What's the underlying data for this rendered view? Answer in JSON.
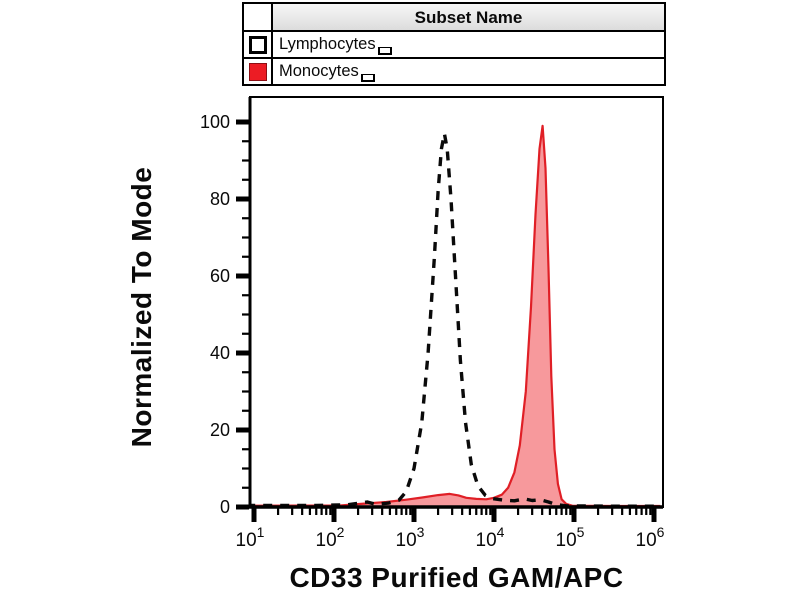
{
  "legend": {
    "header": "Subset Name",
    "rows": [
      {
        "label": "Lymphocytes",
        "swatch_fill": "#ffffff",
        "swatch_border": "#000000",
        "line_style": "dashed"
      },
      {
        "label": "Monocytes",
        "swatch_fill": "#ec1c24",
        "swatch_border": "#8e0e14",
        "line_style": "solid-filled"
      }
    ]
  },
  "chart_data": {
    "type": "area",
    "subtype": "flow-cytometry-histogram-overlay",
    "title": "",
    "xlabel": "CD33 Purified GAM/APC",
    "ylabel": "Normalized To Mode",
    "x_scale": "log10",
    "x_log_range": [
      0.95,
      6.11
    ],
    "ylim": [
      0,
      106.5
    ],
    "grid": false,
    "legend_position": "top-table",
    "xticks": [
      {
        "base": "10",
        "exp": "1",
        "value": 10
      },
      {
        "base": "10",
        "exp": "2",
        "value": 100
      },
      {
        "base": "10",
        "exp": "3",
        "value": 1000
      },
      {
        "base": "10",
        "exp": "4",
        "value": 10000
      },
      {
        "base": "10",
        "exp": "5",
        "value": 100000
      },
      {
        "base": "10",
        "exp": "6",
        "value": 1000000
      }
    ],
    "yticks": [
      0,
      20,
      40,
      60,
      80,
      100
    ],
    "y_minor_step": 5,
    "colors": {
      "axis": "#000000",
      "lymphocytes_stroke": "#0a0a0a",
      "monocytes_stroke": "#e01f26",
      "monocytes_fill": "rgba(237,28,36,0.45)"
    },
    "series": [
      {
        "name": "Lymphocytes",
        "style": "dashed",
        "peak_x": 2400,
        "peak_y": 97,
        "points": [
          [
            8,
            0.4
          ],
          [
            60,
            0.4
          ],
          [
            150,
            0.6
          ],
          [
            260,
            1.3
          ],
          [
            330,
            0.7
          ],
          [
            480,
            1.0
          ],
          [
            650,
            1.8
          ],
          [
            800,
            4
          ],
          [
            1000,
            10
          ],
          [
            1250,
            22
          ],
          [
            1500,
            40
          ],
          [
            1800,
            65
          ],
          [
            2000,
            82
          ],
          [
            2200,
            93
          ],
          [
            2400,
            97
          ],
          [
            2600,
            93
          ],
          [
            2900,
            80
          ],
          [
            3300,
            60
          ],
          [
            3800,
            38
          ],
          [
            4400,
            22
          ],
          [
            5200,
            11
          ],
          [
            6300,
            5.5
          ],
          [
            7800,
            3
          ],
          [
            9500,
            2.2
          ],
          [
            13000,
            1.8
          ],
          [
            18000,
            1.6
          ],
          [
            24000,
            2.1
          ],
          [
            30000,
            1.7
          ],
          [
            38000,
            1.9
          ],
          [
            48000,
            1.3
          ],
          [
            60000,
            0.6
          ],
          [
            80000,
            0.3
          ],
          [
            300000,
            0.2
          ],
          [
            1200000,
            0.2
          ]
        ]
      },
      {
        "name": "Monocytes",
        "style": "filled",
        "peak_x": 40500,
        "peak_y": 99,
        "points": [
          [
            8,
            0.3
          ],
          [
            120,
            0.4
          ],
          [
            250,
            0.9
          ],
          [
            450,
            1.3
          ],
          [
            800,
            1.9
          ],
          [
            1300,
            2.5
          ],
          [
            2000,
            3.1
          ],
          [
            2800,
            3.4
          ],
          [
            3600,
            3.0
          ],
          [
            4500,
            2.4
          ],
          [
            6000,
            2.1
          ],
          [
            8000,
            2.0
          ],
          [
            10000,
            2.4
          ],
          [
            12500,
            3.2
          ],
          [
            15000,
            5
          ],
          [
            18000,
            9
          ],
          [
            21000,
            16
          ],
          [
            25000,
            30
          ],
          [
            29000,
            52
          ],
          [
            33000,
            76
          ],
          [
            37000,
            93
          ],
          [
            40500,
            99
          ],
          [
            44000,
            88
          ],
          [
            48000,
            62
          ],
          [
            52000,
            34
          ],
          [
            57000,
            15
          ],
          [
            63000,
            6
          ],
          [
            70000,
            2
          ],
          [
            80000,
            0.8
          ],
          [
            95000,
            0.35
          ],
          [
            300000,
            0.25
          ],
          [
            1200000,
            0.25
          ]
        ]
      }
    ]
  }
}
